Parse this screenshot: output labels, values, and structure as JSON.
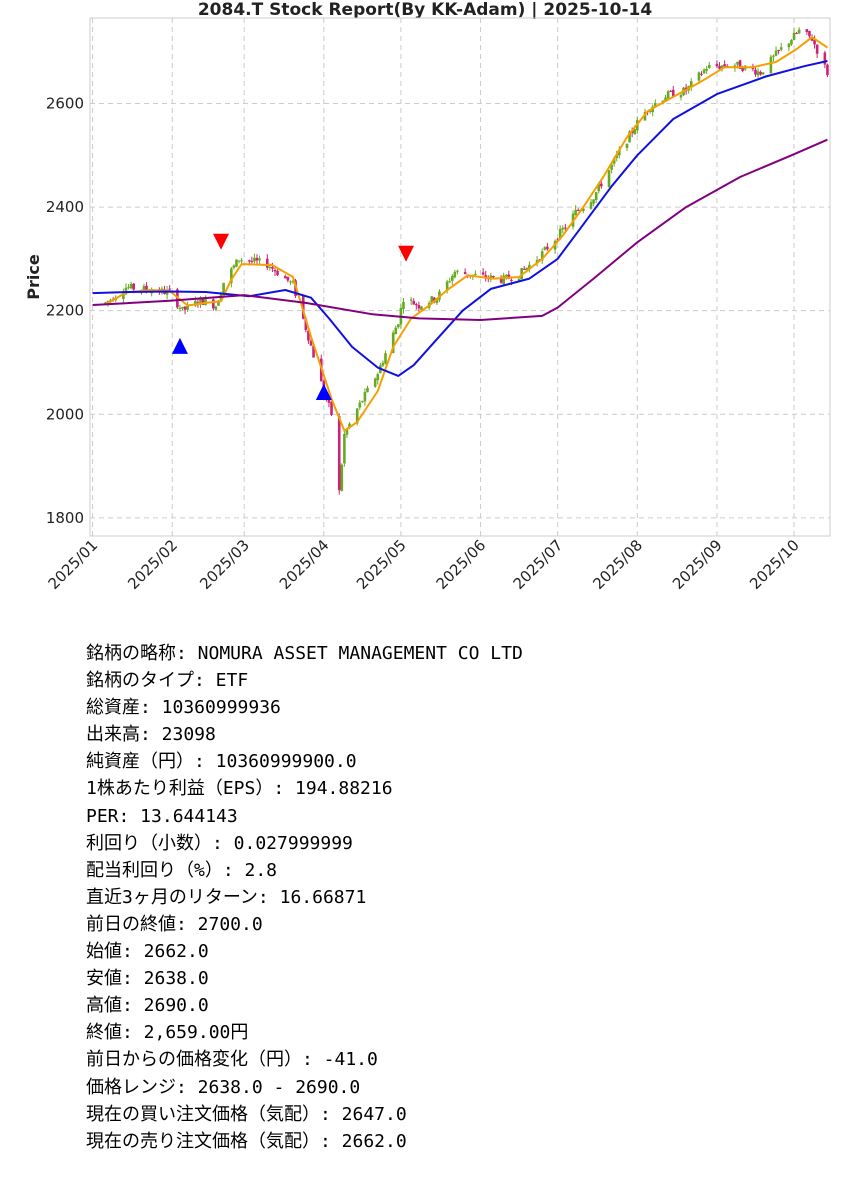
{
  "chart_data": {
    "type": "candlestick",
    "title": "2084.T   Stock Report(By KK-Adam) | 2025-10-14",
    "ylabel": "Price",
    "ylim": [
      1765,
      2765
    ],
    "xlim": [
      "2024-12-31",
      "2025-10-15"
    ],
    "yticks": [
      1800,
      2000,
      2200,
      2400,
      2600
    ],
    "xticks": [
      {
        "date": "2025-01-01",
        "label": "2025/01"
      },
      {
        "date": "2025-02-01",
        "label": "2025/02"
      },
      {
        "date": "2025-03-01",
        "label": "2025/03"
      },
      {
        "date": "2025-04-01",
        "label": "2025/04"
      },
      {
        "date": "2025-05-01",
        "label": "2025/05"
      },
      {
        "date": "2025-06-01",
        "label": "2025/06"
      },
      {
        "date": "2025-07-01",
        "label": "2025/07"
      },
      {
        "date": "2025-08-01",
        "label": "2025/08"
      },
      {
        "date": "2025-09-01",
        "label": "2025/09"
      },
      {
        "date": "2025-10-01",
        "label": "2025/10"
      }
    ],
    "grid": true,
    "colors": {
      "up": "#66aa22",
      "down": "#cc2277",
      "short_ma": "#f5a000",
      "mid_ma": "#1010e0",
      "long_ma": "#800080",
      "buy_marker": "#0000ff",
      "sell_marker": "#ff0000"
    },
    "price_path": [
      [
        "2025-01-06",
        2215
      ],
      [
        "2025-01-14",
        2245
      ],
      [
        "2025-01-24",
        2240
      ],
      [
        "2025-01-31",
        2235
      ],
      [
        "2025-02-05",
        2200
      ],
      [
        "2025-02-12",
        2220
      ],
      [
        "2025-02-18",
        2210
      ],
      [
        "2025-02-21",
        2255
      ],
      [
        "2025-02-27",
        2300
      ],
      [
        "2025-03-10",
        2290
      ],
      [
        "2025-03-20",
        2250
      ],
      [
        "2025-03-26",
        2150
      ],
      [
        "2025-03-31",
        2060
      ],
      [
        "2025-04-04",
        2000
      ],
      [
        "2025-04-07",
        1850
      ],
      [
        "2025-04-09",
        1960
      ],
      [
        "2025-04-14",
        2010
      ],
      [
        "2025-04-22",
        2080
      ],
      [
        "2025-04-30",
        2180
      ],
      [
        "2025-05-02",
        2225
      ],
      [
        "2025-05-08",
        2210
      ],
      [
        "2025-05-15",
        2225
      ],
      [
        "2025-05-22",
        2275
      ],
      [
        "2025-06-02",
        2265
      ],
      [
        "2025-06-10",
        2260
      ],
      [
        "2025-06-16",
        2270
      ],
      [
        "2025-06-24",
        2305
      ],
      [
        "2025-07-02",
        2350
      ],
      [
        "2025-07-08",
        2390
      ],
      [
        "2025-07-15",
        2420
      ],
      [
        "2025-07-22",
        2480
      ],
      [
        "2025-07-31",
        2555
      ],
      [
        "2025-08-05",
        2590
      ],
      [
        "2025-08-12",
        2615
      ],
      [
        "2025-08-20",
        2625
      ],
      [
        "2025-08-28",
        2670
      ],
      [
        "2025-09-08",
        2675
      ],
      [
        "2025-09-18",
        2660
      ],
      [
        "2025-09-25",
        2700
      ],
      [
        "2025-10-03",
        2740
      ],
      [
        "2025-10-08",
        2725
      ],
      [
        "2025-10-14",
        2659
      ]
    ],
    "moving_averages": [
      {
        "color": "#f5a000",
        "points": [
          [
            "2025-01-06",
            2212
          ],
          [
            "2025-01-14",
            2235
          ],
          [
            "2025-01-24",
            2240
          ],
          [
            "2025-01-31",
            2238
          ],
          [
            "2025-02-07",
            2210
          ],
          [
            "2025-02-14",
            2215
          ],
          [
            "2025-02-20",
            2218
          ],
          [
            "2025-02-24",
            2260
          ],
          [
            "2025-02-28",
            2290
          ],
          [
            "2025-03-12",
            2288
          ],
          [
            "2025-03-20",
            2265
          ],
          [
            "2025-03-27",
            2150
          ],
          [
            "2025-04-04",
            2030
          ],
          [
            "2025-04-09",
            1968
          ],
          [
            "2025-04-14",
            1985
          ],
          [
            "2025-04-22",
            2045
          ],
          [
            "2025-04-28",
            2130
          ],
          [
            "2025-05-05",
            2185
          ],
          [
            "2025-05-12",
            2210
          ],
          [
            "2025-05-19",
            2240
          ],
          [
            "2025-05-27",
            2268
          ],
          [
            "2025-06-06",
            2262
          ],
          [
            "2025-06-16",
            2265
          ],
          [
            "2025-06-25",
            2300
          ],
          [
            "2025-07-03",
            2345
          ],
          [
            "2025-07-11",
            2400
          ],
          [
            "2025-07-19",
            2460
          ],
          [
            "2025-07-28",
            2535
          ],
          [
            "2025-08-05",
            2585
          ],
          [
            "2025-08-14",
            2610
          ],
          [
            "2025-08-25",
            2640
          ],
          [
            "2025-09-04",
            2670
          ],
          [
            "2025-09-15",
            2670
          ],
          [
            "2025-09-24",
            2680
          ],
          [
            "2025-10-02",
            2705
          ],
          [
            "2025-10-08",
            2728
          ],
          [
            "2025-10-14",
            2708
          ]
        ]
      },
      {
        "color": "#1010e0",
        "points": [
          [
            "2025-01-01",
            2234
          ],
          [
            "2025-01-15",
            2236
          ],
          [
            "2025-01-31",
            2237
          ],
          [
            "2025-02-14",
            2236
          ],
          [
            "2025-03-03",
            2228
          ],
          [
            "2025-03-17",
            2240
          ],
          [
            "2025-03-27",
            2225
          ],
          [
            "2025-04-03",
            2185
          ],
          [
            "2025-04-12",
            2130
          ],
          [
            "2025-04-22",
            2090
          ],
          [
            "2025-04-30",
            2074
          ],
          [
            "2025-05-06",
            2095
          ],
          [
            "2025-05-15",
            2145
          ],
          [
            "2025-05-25",
            2200
          ],
          [
            "2025-06-05",
            2242
          ],
          [
            "2025-06-20",
            2262
          ],
          [
            "2025-07-01",
            2300
          ],
          [
            "2025-07-10",
            2360
          ],
          [
            "2025-07-22",
            2440
          ],
          [
            "2025-08-01",
            2500
          ],
          [
            "2025-08-15",
            2570
          ],
          [
            "2025-09-01",
            2618
          ],
          [
            "2025-09-20",
            2652
          ],
          [
            "2025-10-05",
            2672
          ],
          [
            "2025-10-14",
            2682
          ]
        ]
      },
      {
        "color": "#800080",
        "points": [
          [
            "2025-01-01",
            2211
          ],
          [
            "2025-01-31",
            2219
          ],
          [
            "2025-03-01",
            2230
          ],
          [
            "2025-03-25",
            2215
          ],
          [
            "2025-04-20",
            2193
          ],
          [
            "2025-05-08",
            2185
          ],
          [
            "2025-06-01",
            2182
          ],
          [
            "2025-06-25",
            2190
          ],
          [
            "2025-07-01",
            2206
          ],
          [
            "2025-07-15",
            2262
          ],
          [
            "2025-08-01",
            2332
          ],
          [
            "2025-08-20",
            2400
          ],
          [
            "2025-09-10",
            2458
          ],
          [
            "2025-09-30",
            2500
          ],
          [
            "2025-10-14",
            2530
          ]
        ]
      }
    ],
    "markers": [
      {
        "type": "buy",
        "date": "2025-02-04",
        "price": 2132
      },
      {
        "type": "sell",
        "date": "2025-02-20",
        "price": 2333
      },
      {
        "type": "buy",
        "date": "2025-04-01",
        "price": 2043
      },
      {
        "type": "sell",
        "date": "2025-05-03",
        "price": 2310
      }
    ]
  },
  "info_rows": [
    "銘柄の略称: NOMURA ASSET MANAGEMENT CO LTD",
    "銘柄のタイプ: ETF",
    "総資産: 10360999936",
    "出来高: 23098",
    "純資産（円）: 10360999900.0",
    "1株あたり利益（EPS）: 194.88216",
    "PER: 13.644143",
    "利回り（小数）: 0.027999999",
    "配当利回り（%）: 2.8",
    "直近3ヶ月のリターン: 16.66871",
    "前日の終値: 2700.0",
    "始値: 2662.0",
    "安値: 2638.0",
    "高値: 2690.0",
    "終値: 2,659.00円",
    "前日からの価格変化（円）: -41.0",
    "価格レンジ: 2638.0 - 2690.0",
    "現在の買い注文価格（気配）: 2647.0",
    "現在の売り注文価格（気配）: 2662.0"
  ]
}
